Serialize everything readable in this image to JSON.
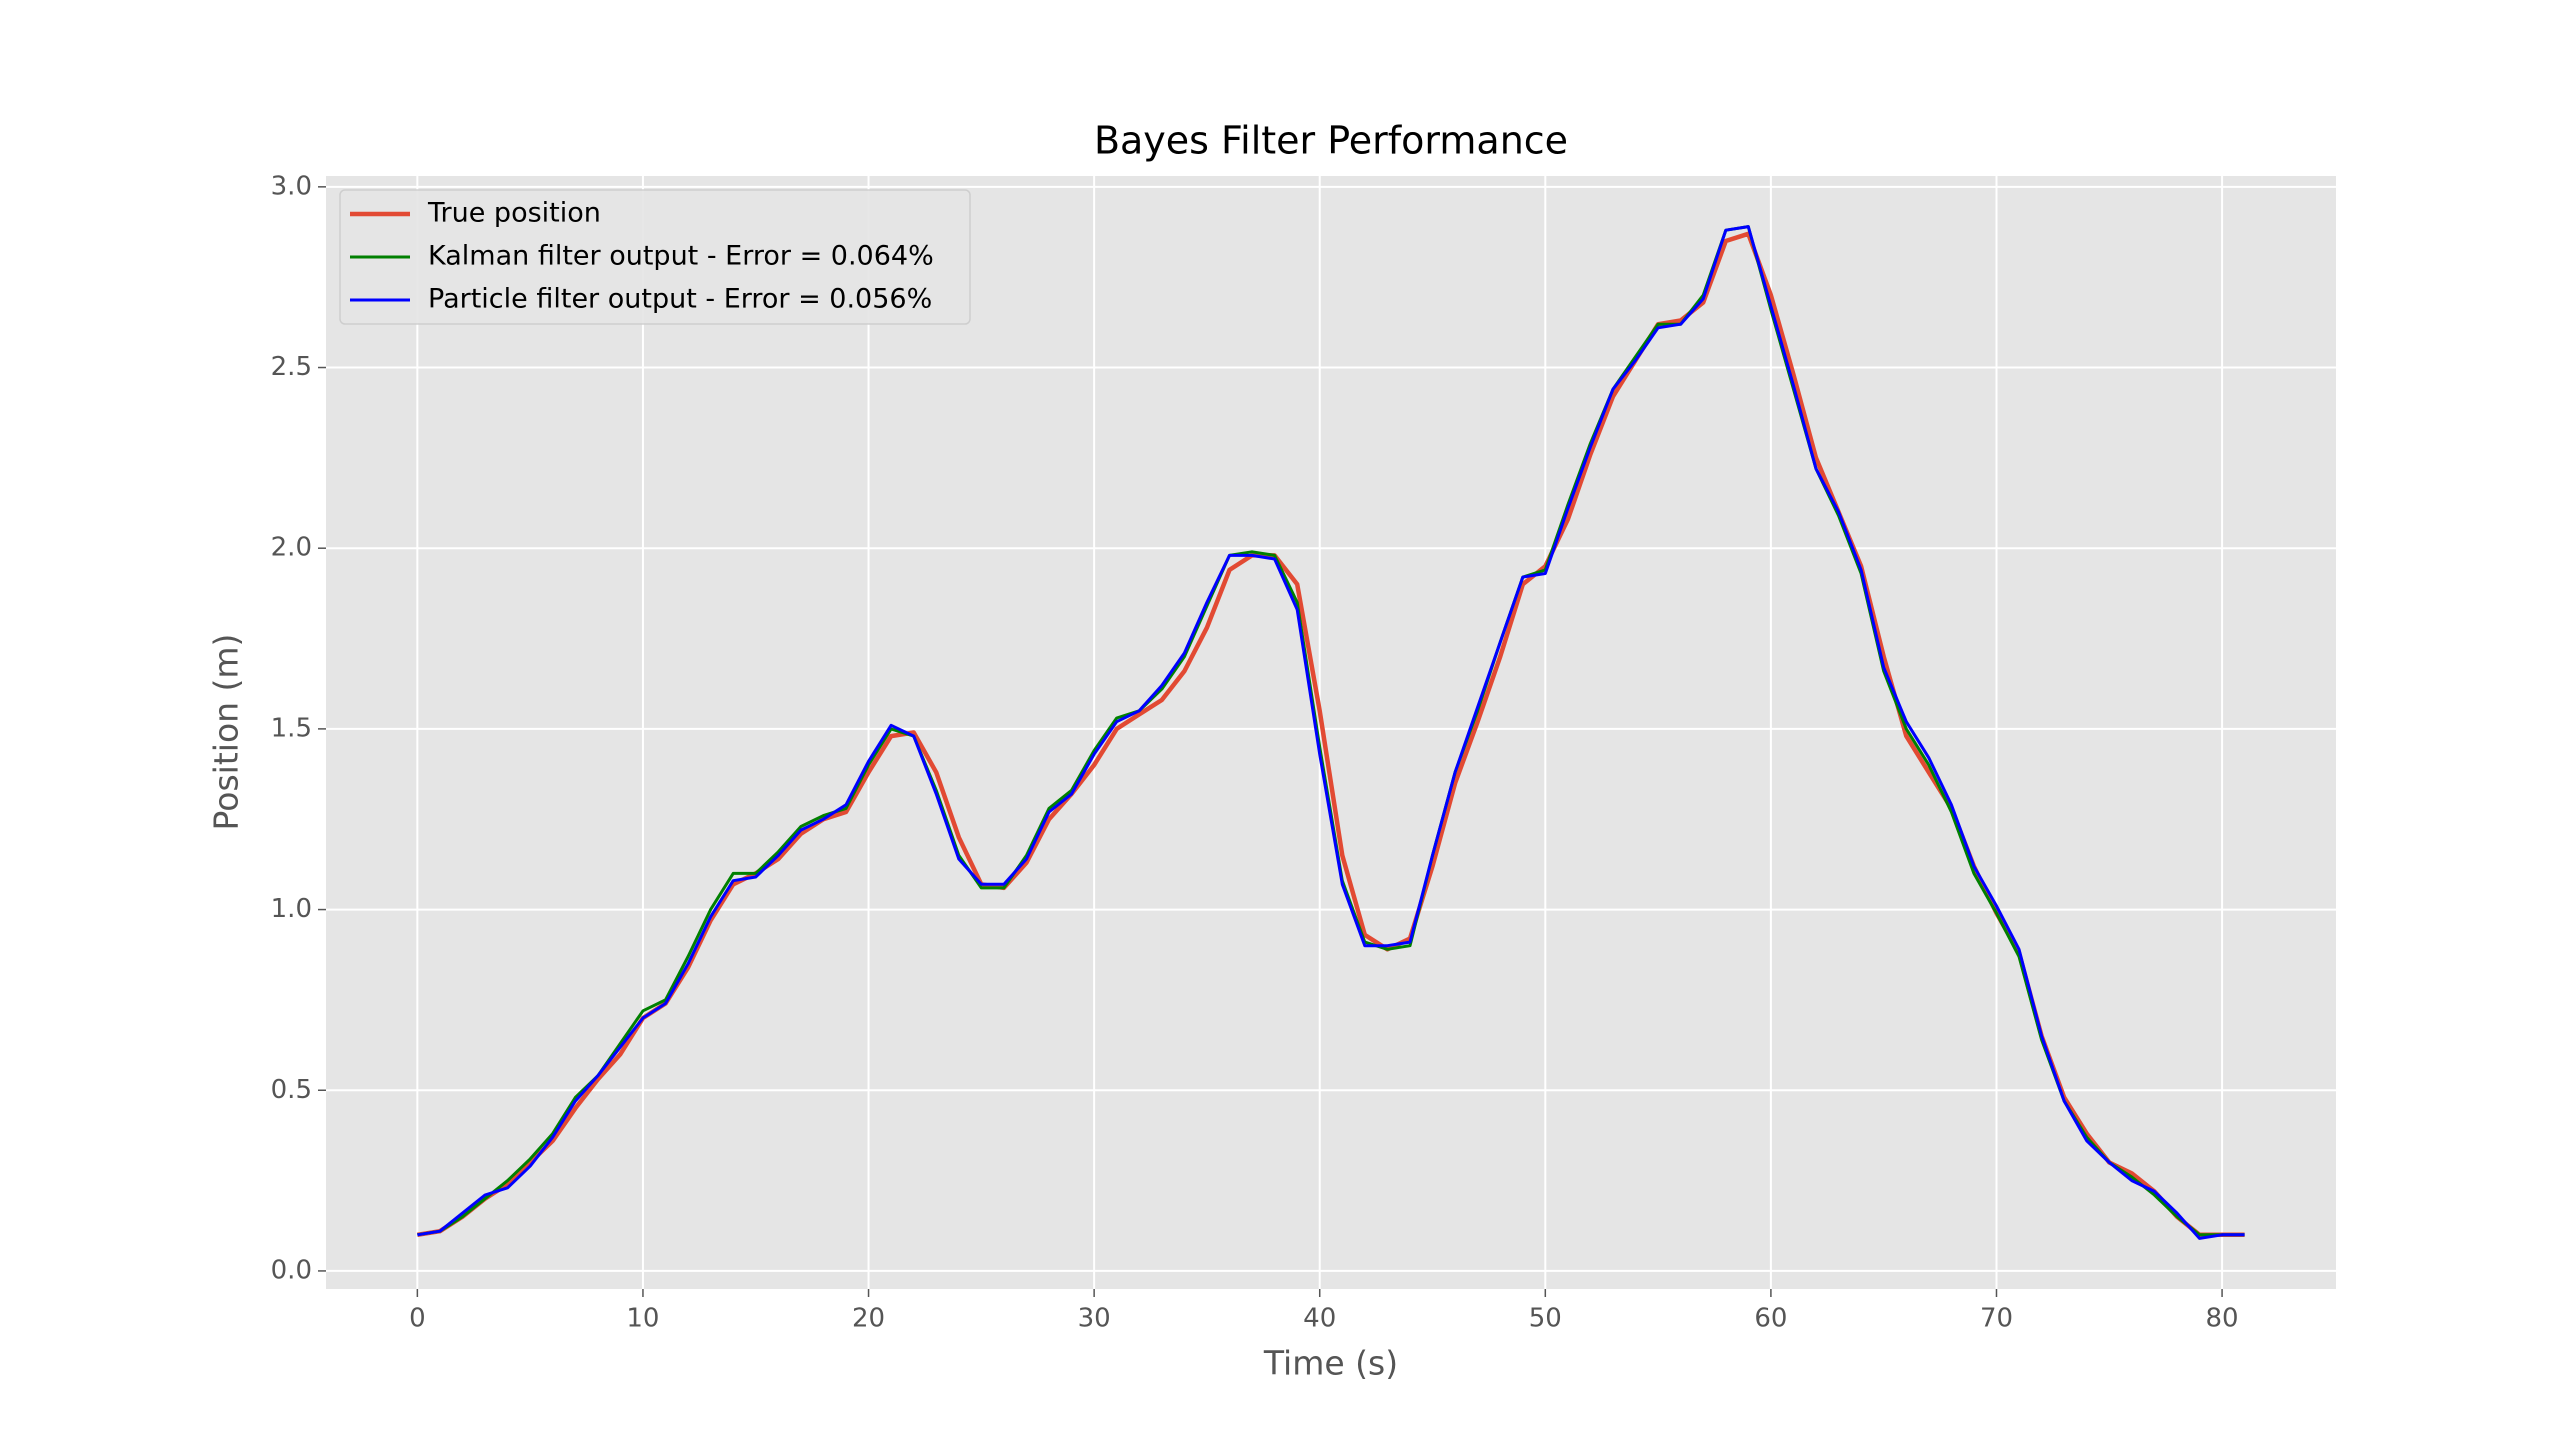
{
  "chart_data": {
    "type": "line",
    "title": "Bayes Filter Performance",
    "x_label": "Time (s)",
    "y_label": "Position (m)",
    "x": [
      0,
      1,
      2,
      3,
      4,
      5,
      6,
      7,
      8,
      9,
      10,
      11,
      12,
      13,
      14,
      15,
      16,
      17,
      18,
      19,
      20,
      21,
      22,
      23,
      24,
      25,
      26,
      27,
      28,
      29,
      30,
      31,
      32,
      33,
      34,
      35,
      36,
      37,
      38,
      39,
      40,
      41,
      42,
      43,
      44,
      45,
      46,
      47,
      48,
      49,
      50,
      51,
      52,
      53,
      54,
      55,
      56,
      57,
      58,
      59,
      60,
      61,
      62,
      63,
      64,
      65,
      66,
      67,
      68,
      69,
      70,
      71,
      72,
      73,
      74,
      75,
      76,
      77,
      78,
      79,
      80,
      81
    ],
    "series": [
      {
        "name": "True position",
        "color": "#e24a33",
        "values": [
          0.1,
          0.11,
          0.15,
          0.2,
          0.24,
          0.3,
          0.36,
          0.45,
          0.53,
          0.6,
          0.7,
          0.74,
          0.84,
          0.97,
          1.07,
          1.1,
          1.14,
          1.21,
          1.25,
          1.27,
          1.38,
          1.48,
          1.49,
          1.38,
          1.2,
          1.07,
          1.06,
          1.13,
          1.25,
          1.32,
          1.4,
          1.5,
          1.54,
          1.58,
          1.66,
          1.78,
          1.94,
          1.98,
          1.98,
          1.9,
          1.55,
          1.15,
          0.93,
          0.89,
          0.92,
          1.12,
          1.35,
          1.52,
          1.7,
          1.9,
          1.95,
          2.08,
          2.26,
          2.42,
          2.52,
          2.62,
          2.63,
          2.68,
          2.85,
          2.87,
          2.7,
          2.48,
          2.25,
          2.1,
          1.95,
          1.7,
          1.48,
          1.38,
          1.28,
          1.12,
          0.99,
          0.88,
          0.65,
          0.48,
          0.38,
          0.3,
          0.27,
          0.22,
          0.15,
          0.1,
          0.1,
          0.1
        ]
      },
      {
        "name": "Kalman filter output - Error = 0.064%",
        "color": "#008000",
        "values": [
          0.1,
          0.11,
          0.15,
          0.2,
          0.25,
          0.31,
          0.38,
          0.48,
          0.54,
          0.63,
          0.72,
          0.75,
          0.87,
          1.0,
          1.1,
          1.1,
          1.16,
          1.23,
          1.26,
          1.28,
          1.4,
          1.5,
          1.48,
          1.33,
          1.15,
          1.06,
          1.06,
          1.15,
          1.28,
          1.33,
          1.44,
          1.53,
          1.55,
          1.61,
          1.7,
          1.84,
          1.98,
          1.99,
          1.98,
          1.85,
          1.45,
          1.08,
          0.91,
          0.89,
          0.9,
          1.15,
          1.38,
          1.55,
          1.74,
          1.92,
          1.94,
          2.12,
          2.29,
          2.44,
          2.53,
          2.62,
          2.62,
          2.7,
          2.88,
          2.89,
          2.66,
          2.44,
          2.22,
          2.09,
          1.93,
          1.66,
          1.5,
          1.4,
          1.27,
          1.1,
          0.99,
          0.87,
          0.64,
          0.47,
          0.37,
          0.3,
          0.26,
          0.21,
          0.15,
          0.1,
          0.1,
          0.1
        ]
      },
      {
        "name": "Particle filter output - Error = 0.056%",
        "color": "#0000ff",
        "values": [
          0.1,
          0.11,
          0.16,
          0.21,
          0.23,
          0.29,
          0.37,
          0.47,
          0.54,
          0.62,
          0.7,
          0.74,
          0.85,
          0.98,
          1.08,
          1.09,
          1.15,
          1.22,
          1.25,
          1.29,
          1.41,
          1.51,
          1.48,
          1.32,
          1.14,
          1.07,
          1.07,
          1.14,
          1.27,
          1.32,
          1.43,
          1.52,
          1.55,
          1.62,
          1.71,
          1.85,
          1.98,
          1.98,
          1.97,
          1.83,
          1.43,
          1.07,
          0.9,
          0.9,
          0.91,
          1.15,
          1.38,
          1.56,
          1.74,
          1.92,
          1.93,
          2.11,
          2.28,
          2.44,
          2.52,
          2.61,
          2.62,
          2.69,
          2.88,
          2.89,
          2.67,
          2.45,
          2.22,
          2.1,
          1.94,
          1.67,
          1.52,
          1.42,
          1.29,
          1.12,
          1.01,
          0.89,
          0.65,
          0.47,
          0.36,
          0.3,
          0.25,
          0.22,
          0.16,
          0.09,
          0.1,
          0.1
        ]
      }
    ],
    "xlim": [
      -4.05,
      85.05
    ],
    "ylim": [
      -0.05,
      3.03
    ],
    "xticks": [
      0,
      10,
      20,
      30,
      40,
      50,
      60,
      70,
      80
    ],
    "yticks": [
      {
        "value": 0,
        "label": "0.0"
      },
      0.5,
      {
        "value": 1,
        "label": "1.0"
      },
      1.5,
      {
        "value": 2,
        "label": "2.0"
      },
      2.5,
      {
        "value": 3,
        "label": "3.0"
      }
    ],
    "grid": true,
    "legend": "upper left"
  }
}
